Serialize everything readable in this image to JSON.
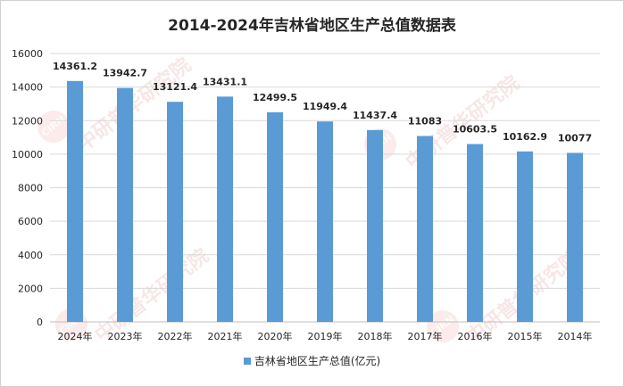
{
  "colors": {
    "bar": "#5b9bd5",
    "grid": "#d9d9d9",
    "text": "#262626"
  },
  "watermark": {
    "text": "中研普华研究院",
    "url": "www.ChinaIRN.COM",
    "logo": "CIRN"
  },
  "chart_data": {
    "type": "bar",
    "title": "2014-2024年吉林省地区生产总值数据表",
    "categories": [
      "2024年",
      "2023年",
      "2022年",
      "2021年",
      "2020年",
      "2019年",
      "2018年",
      "2017年",
      "2016年",
      "2015年",
      "2014年"
    ],
    "series": [
      {
        "name": "吉林省地区生产总值(亿元)",
        "values": [
          14361.2,
          13942.7,
          13121.4,
          13431.1,
          12499.5,
          11949.4,
          11437.4,
          11083,
          10603.5,
          10162.9,
          10077
        ]
      }
    ],
    "data_labels": [
      "14361.2",
      "13942.7",
      "13121.4",
      "13431.1",
      "12499.5",
      "11949.4",
      "11437.4",
      "11083",
      "10603.5",
      "10162.9",
      "10077"
    ],
    "ylim": [
      0,
      16000
    ],
    "yticks": [
      0,
      2000,
      4000,
      6000,
      8000,
      10000,
      12000,
      14000,
      16000
    ],
    "xlabel": "",
    "ylabel": "",
    "grid": true,
    "legend": "bottom-center"
  }
}
